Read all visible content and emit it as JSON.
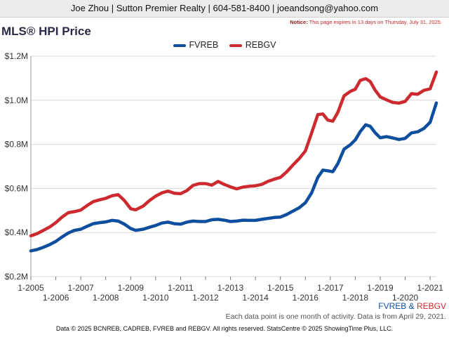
{
  "header": {
    "contact_line": "Joe Zhou | Sutton Premier Realty | 604-581-8400 | joeandsong@yahoo.com"
  },
  "notice": {
    "label": "Notice:",
    "text": "This page expires in 13 days on Thursday, July 31, 2025."
  },
  "footer": {
    "activity_note": "Each data point is one month of activity. Data is from April 29, 2021.",
    "series_fvreb": "FVREB",
    "amp": "&",
    "series_rebgv": "REBGV",
    "copyright": "Data © 2025 BCNREB, CADREB, FVREB and REBGV. All rights reserved. StatsCentre © 2025 ShowingTime Plus, LLC."
  },
  "colors": {
    "fvreb": "#0d4f9e",
    "rebgv": "#cc2a2f",
    "grid": "#d8d8d8"
  },
  "chart_data": {
    "type": "line",
    "title": "MLS® HPI Price",
    "xlabel": "",
    "ylabel": "",
    "ylim": [
      200000,
      1200000
    ],
    "yticks": [
      {
        "value": 200000,
        "label": "$0.2M"
      },
      {
        "value": 400000,
        "label": "$0.4M"
      },
      {
        "value": 600000,
        "label": "$0.6M"
      },
      {
        "value": 800000,
        "label": "$0.8M"
      },
      {
        "value": 1000000,
        "label": "$1.0M"
      },
      {
        "value": 1200000,
        "label": "$1.2M"
      }
    ],
    "xlim": [
      2005.0,
      2021.25
    ],
    "xticks": [
      {
        "value": 2005,
        "label": "1-2005",
        "row": 0
      },
      {
        "value": 2006,
        "label": "1-2006",
        "row": 1
      },
      {
        "value": 2007,
        "label": "1-2007",
        "row": 0
      },
      {
        "value": 2008,
        "label": "1-2008",
        "row": 1
      },
      {
        "value": 2009,
        "label": "1-2009",
        "row": 0
      },
      {
        "value": 2010,
        "label": "1-2010",
        "row": 1
      },
      {
        "value": 2011,
        "label": "1-2011",
        "row": 0
      },
      {
        "value": 2012,
        "label": "1-2012",
        "row": 1
      },
      {
        "value": 2013,
        "label": "1-2013",
        "row": 0
      },
      {
        "value": 2014,
        "label": "1-2014",
        "row": 1
      },
      {
        "value": 2015,
        "label": "1-2015",
        "row": 0
      },
      {
        "value": 2016,
        "label": "1-2016",
        "row": 1
      },
      {
        "value": 2017,
        "label": "1-2017",
        "row": 0
      },
      {
        "value": 2018,
        "label": "1-2018",
        "row": 1
      },
      {
        "value": 2019,
        "label": "1-2019",
        "row": 0
      },
      {
        "value": 2020,
        "label": "1-2020",
        "row": 1
      },
      {
        "value": 2021,
        "label": "1-2021",
        "row": 0
      }
    ],
    "grid": true,
    "legend_position": "top-center",
    "series": [
      {
        "name": "FVREB",
        "color": "#0d4f9e",
        "points": [
          [
            2005.0,
            317000
          ],
          [
            2005.25,
            323000
          ],
          [
            2005.5,
            333000
          ],
          [
            2005.75,
            345000
          ],
          [
            2006.0,
            360000
          ],
          [
            2006.25,
            380000
          ],
          [
            2006.5,
            398000
          ],
          [
            2006.75,
            410000
          ],
          [
            2007.0,
            415000
          ],
          [
            2007.25,
            428000
          ],
          [
            2007.5,
            440000
          ],
          [
            2007.75,
            445000
          ],
          [
            2008.0,
            448000
          ],
          [
            2008.25,
            455000
          ],
          [
            2008.5,
            452000
          ],
          [
            2008.75,
            438000
          ],
          [
            2009.0,
            418000
          ],
          [
            2009.2,
            410000
          ],
          [
            2009.5,
            415000
          ],
          [
            2009.75,
            424000
          ],
          [
            2010.0,
            432000
          ],
          [
            2010.25,
            443000
          ],
          [
            2010.5,
            447000
          ],
          [
            2010.75,
            440000
          ],
          [
            2011.0,
            438000
          ],
          [
            2011.25,
            447000
          ],
          [
            2011.5,
            452000
          ],
          [
            2011.75,
            450000
          ],
          [
            2012.0,
            450000
          ],
          [
            2012.25,
            458000
          ],
          [
            2012.5,
            460000
          ],
          [
            2012.75,
            456000
          ],
          [
            2013.0,
            450000
          ],
          [
            2013.25,
            452000
          ],
          [
            2013.5,
            456000
          ],
          [
            2013.75,
            455000
          ],
          [
            2014.0,
            455000
          ],
          [
            2014.25,
            460000
          ],
          [
            2014.5,
            464000
          ],
          [
            2014.75,
            468000
          ],
          [
            2015.0,
            470000
          ],
          [
            2015.25,
            482000
          ],
          [
            2015.5,
            497000
          ],
          [
            2015.75,
            512000
          ],
          [
            2016.0,
            535000
          ],
          [
            2016.25,
            580000
          ],
          [
            2016.5,
            650000
          ],
          [
            2016.7,
            683000
          ],
          [
            2016.9,
            680000
          ],
          [
            2017.1,
            676000
          ],
          [
            2017.3,
            712000
          ],
          [
            2017.55,
            778000
          ],
          [
            2017.8,
            798000
          ],
          [
            2018.0,
            820000
          ],
          [
            2018.2,
            858000
          ],
          [
            2018.42,
            889000
          ],
          [
            2018.6,
            882000
          ],
          [
            2018.8,
            852000
          ],
          [
            2019.0,
            830000
          ],
          [
            2019.25,
            835000
          ],
          [
            2019.5,
            829000
          ],
          [
            2019.75,
            822000
          ],
          [
            2020.0,
            827000
          ],
          [
            2020.25,
            852000
          ],
          [
            2020.5,
            857000
          ],
          [
            2020.75,
            872000
          ],
          [
            2021.0,
            900000
          ],
          [
            2021.25,
            988000
          ]
        ]
      },
      {
        "name": "REBGV",
        "color": "#cc2a2f",
        "points": [
          [
            2005.0,
            385000
          ],
          [
            2005.25,
            395000
          ],
          [
            2005.5,
            410000
          ],
          [
            2005.75,
            425000
          ],
          [
            2006.0,
            445000
          ],
          [
            2006.25,
            470000
          ],
          [
            2006.5,
            490000
          ],
          [
            2006.75,
            495000
          ],
          [
            2007.0,
            502000
          ],
          [
            2007.25,
            522000
          ],
          [
            2007.5,
            540000
          ],
          [
            2007.75,
            548000
          ],
          [
            2008.0,
            555000
          ],
          [
            2008.25,
            567000
          ],
          [
            2008.5,
            572000
          ],
          [
            2008.75,
            545000
          ],
          [
            2009.0,
            508000
          ],
          [
            2009.2,
            503000
          ],
          [
            2009.5,
            520000
          ],
          [
            2009.75,
            545000
          ],
          [
            2010.0,
            565000
          ],
          [
            2010.25,
            580000
          ],
          [
            2010.5,
            588000
          ],
          [
            2010.75,
            578000
          ],
          [
            2011.0,
            576000
          ],
          [
            2011.25,
            590000
          ],
          [
            2011.5,
            614000
          ],
          [
            2011.75,
            622000
          ],
          [
            2012.0,
            622000
          ],
          [
            2012.25,
            615000
          ],
          [
            2012.5,
            632000
          ],
          [
            2012.75,
            618000
          ],
          [
            2013.0,
            607000
          ],
          [
            2013.25,
            598000
          ],
          [
            2013.5,
            606000
          ],
          [
            2013.75,
            610000
          ],
          [
            2014.0,
            612000
          ],
          [
            2014.25,
            618000
          ],
          [
            2014.5,
            632000
          ],
          [
            2014.75,
            642000
          ],
          [
            2015.0,
            650000
          ],
          [
            2015.25,
            675000
          ],
          [
            2015.5,
            706000
          ],
          [
            2015.75,
            735000
          ],
          [
            2016.0,
            770000
          ],
          [
            2016.25,
            852000
          ],
          [
            2016.5,
            935000
          ],
          [
            2016.7,
            938000
          ],
          [
            2016.9,
            910000
          ],
          [
            2017.1,
            905000
          ],
          [
            2017.3,
            945000
          ],
          [
            2017.55,
            1020000
          ],
          [
            2017.8,
            1040000
          ],
          [
            2018.0,
            1050000
          ],
          [
            2018.2,
            1090000
          ],
          [
            2018.42,
            1098000
          ],
          [
            2018.6,
            1085000
          ],
          [
            2018.8,
            1045000
          ],
          [
            2019.0,
            1015000
          ],
          [
            2019.25,
            1002000
          ],
          [
            2019.5,
            990000
          ],
          [
            2019.75,
            987000
          ],
          [
            2020.0,
            995000
          ],
          [
            2020.25,
            1030000
          ],
          [
            2020.5,
            1027000
          ],
          [
            2020.75,
            1045000
          ],
          [
            2021.0,
            1052000
          ],
          [
            2021.25,
            1128000
          ]
        ]
      }
    ]
  }
}
